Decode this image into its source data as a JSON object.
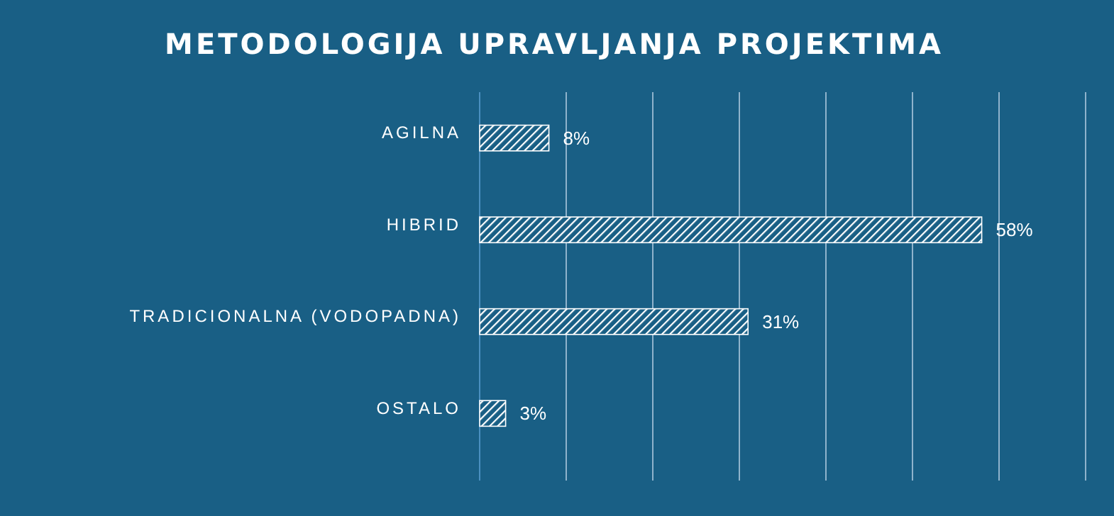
{
  "chart_data": {
    "type": "bar",
    "orientation": "horizontal",
    "title": "METODOLOGIJA UPRAVLJANJA PROJEKTIMA",
    "categories": [
      "AGILNA",
      "HIBRID",
      "TRADICIONALNA (VODOPADNA)",
      "OSTALO"
    ],
    "values": [
      8,
      58,
      31,
      3
    ],
    "color": "#ffffff",
    "value_labels": [
      "8%",
      "58%",
      "31%",
      "3%"
    ],
    "xlim": [
      0,
      70
    ],
    "xticks": [
      {
        "value": 0,
        "label": null
      },
      {
        "value": 10,
        "label": null
      },
      {
        "value": 20,
        "label": null
      },
      {
        "value": 30,
        "label": null
      },
      {
        "value": 40,
        "label": null
      },
      {
        "value": 50,
        "label": null
      },
      {
        "value": 60,
        "label": null
      },
      {
        "value": 70,
        "label": null
      }
    ],
    "grid": "x",
    "tick_labels": "y"
  }
}
